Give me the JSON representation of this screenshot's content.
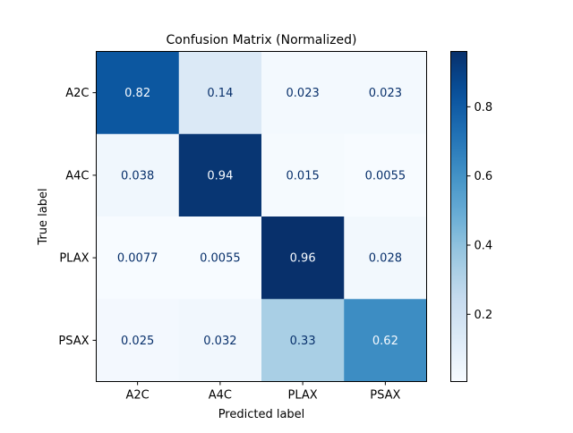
{
  "chart_data": {
    "type": "heatmap",
    "title": "Confusion Matrix (Normalized)",
    "xlabel": "Predicted label",
    "ylabel": "True label",
    "x_categories": [
      "A2C",
      "A4C",
      "PLAX",
      "PSAX"
    ],
    "y_categories": [
      "A2C",
      "A4C",
      "PLAX",
      "PSAX"
    ],
    "values": [
      [
        0.82,
        0.14,
        0.023,
        0.023
      ],
      [
        0.038,
        0.94,
        0.015,
        0.0055
      ],
      [
        0.0077,
        0.0055,
        0.96,
        0.028
      ],
      [
        0.025,
        0.032,
        0.33,
        0.62
      ]
    ],
    "cell_labels": [
      [
        "0.82",
        "0.14",
        "0.023",
        "0.023"
      ],
      [
        "0.038",
        "0.94",
        "0.015",
        "0.0055"
      ],
      [
        "0.0077",
        "0.0055",
        "0.96",
        "0.028"
      ],
      [
        "0.025",
        "0.032",
        "0.33",
        "0.62"
      ]
    ],
    "colormap": "Blues",
    "color_range": [
      0.0055,
      0.96
    ],
    "colorbar_ticks": [
      0.2,
      0.4,
      0.6,
      0.8
    ],
    "colorbar_tick_labels": [
      "0.2",
      "0.4",
      "0.6",
      "0.8"
    ],
    "grid": false
  }
}
